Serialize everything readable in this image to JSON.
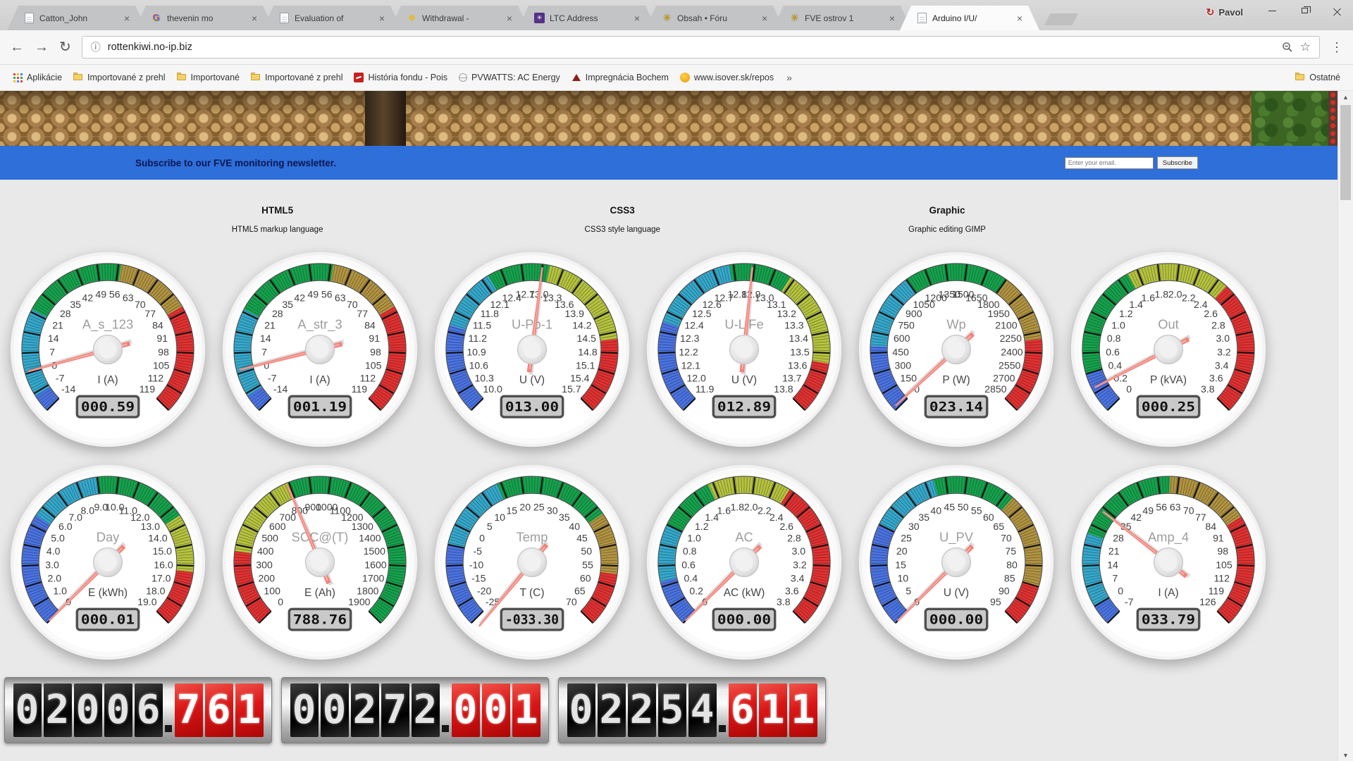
{
  "browser": {
    "tabs": [
      {
        "icon": "document",
        "label": "Catton_John",
        "active": false
      },
      {
        "icon": "google",
        "label": "thevenin mo",
        "active": false
      },
      {
        "icon": "document",
        "label": "Evaluation of",
        "active": false
      },
      {
        "icon": "binance",
        "label": "Withdrawal -",
        "active": false
      },
      {
        "icon": "litecoin",
        "label": "LTC Address",
        "active": false
      },
      {
        "icon": "sun",
        "label": "Obsah • Fóru",
        "active": false
      },
      {
        "icon": "sun",
        "label": "FVE ostrov 1",
        "active": false
      },
      {
        "icon": "document",
        "label": "Arduino I/U/",
        "active": true
      }
    ],
    "profile_name": "Pavol",
    "url": "rottenkiwi.no-ip.biz",
    "bookmarks": [
      {
        "icon": "apps",
        "label": "Aplikácie"
      },
      {
        "icon": "folder",
        "label": "Importované z prehl"
      },
      {
        "icon": "folder",
        "label": "Importované"
      },
      {
        "icon": "folder",
        "label": "Importované z prehl"
      },
      {
        "icon": "site-red",
        "label": "História fondu - Pois"
      },
      {
        "icon": "site-gray",
        "label": "PVWATTS: AC Energy"
      },
      {
        "icon": "site-dark",
        "label": "Impregnácia Bochem"
      },
      {
        "icon": "site-orange",
        "label": "www.isover.sk/repos"
      }
    ],
    "bookmarks_more": "»",
    "bookmarks_right_label": "Ostatné"
  },
  "banner": {
    "text": "Subscribe to our FVE monitoring newsletter.",
    "email_placeholder": "Enter your email.",
    "button": "Subscribe"
  },
  "sections": [
    {
      "title": "HTML5",
      "subtitle": "HTML5 markup language"
    },
    {
      "title": "CSS3",
      "subtitle": "CSS3 style language"
    },
    {
      "title": "Graphic",
      "subtitle": "Graphic editing GIMP"
    }
  ],
  "colors": {
    "blue": "#4a73e3",
    "cyan": "#34a9cd",
    "green": "#14a34c",
    "gold": "#b29440",
    "ygreen": "#b6c43e",
    "red": "#e43030",
    "needle": "#f2837b",
    "banner": "#2e6fd9"
  },
  "gauges": [
    {
      "name": "A_s_123",
      "unit": "I (A)",
      "display": "000.59",
      "value": 0.59,
      "min": -14,
      "max": 119,
      "labels": [
        "-14",
        "-7",
        "0",
        "7",
        "14",
        "21",
        "28",
        "35",
        "42",
        "49",
        "56",
        "63",
        "70",
        "77",
        "84",
        "91",
        "98",
        "105",
        "112",
        "119"
      ],
      "zones": [
        [
          -14,
          -8,
          "blue"
        ],
        [
          -8,
          22,
          "cyan"
        ],
        [
          22,
          57,
          "green"
        ],
        [
          57,
          82,
          "gold"
        ],
        [
          82,
          119,
          "red"
        ]
      ]
    },
    {
      "name": "A_str_3",
      "unit": "I (A)",
      "display": "001.19",
      "value": 1.19,
      "min": -14,
      "max": 119,
      "labels": [
        "-14",
        "-7",
        "0",
        "7",
        "14",
        "21",
        "28",
        "35",
        "42",
        "49",
        "56",
        "63",
        "70",
        "77",
        "84",
        "91",
        "98",
        "105",
        "112",
        "119"
      ],
      "zones": [
        [
          -14,
          -8,
          "blue"
        ],
        [
          -8,
          22,
          "cyan"
        ],
        [
          22,
          57,
          "green"
        ],
        [
          57,
          82,
          "gold"
        ],
        [
          82,
          119,
          "red"
        ]
      ]
    },
    {
      "name": "U-Po-1",
      "unit": "U (V)",
      "display": "013.00",
      "value": 13.0,
      "min": 10,
      "max": 15.7,
      "labels": [
        "10.0",
        "10.3",
        "10.6",
        "10.9",
        "11.2",
        "11.5",
        "11.8",
        "12.1",
        "12.4",
        "12.7",
        "13.0",
        "13.3",
        "13.6",
        "13.9",
        "14.2",
        "14.5",
        "14.8",
        "15.1",
        "15.4",
        "15.7"
      ],
      "zones": [
        [
          10,
          11.3,
          "blue"
        ],
        [
          11.3,
          12.2,
          "cyan"
        ],
        [
          12.2,
          13.1,
          "green"
        ],
        [
          13.1,
          14.6,
          "ygreen"
        ],
        [
          14.6,
          15.7,
          "red"
        ]
      ]
    },
    {
      "name": "U-L Fe",
      "unit": "U (V)",
      "display": "012.89",
      "value": 12.89,
      "min": 11.9,
      "max": 13.8,
      "labels": [
        "11.9",
        "12.0",
        "12.1",
        "12.2",
        "12.3",
        "12.4",
        "12.5",
        "12.6",
        "12.7",
        "12.8",
        "12.9",
        "13.0",
        "13.1",
        "13.2",
        "13.3",
        "13.4",
        "13.5",
        "13.6",
        "13.7",
        "13.8"
      ],
      "zones": [
        [
          11.9,
          12.35,
          "blue"
        ],
        [
          12.35,
          12.78,
          "cyan"
        ],
        [
          12.78,
          13.08,
          "green"
        ],
        [
          13.08,
          13.55,
          "ygreen"
        ],
        [
          13.55,
          13.8,
          "red"
        ]
      ]
    },
    {
      "name": "Wp",
      "unit": "P (W)",
      "display": "023.14",
      "value": 23.14,
      "min": 0,
      "max": 2850,
      "labels": [
        "0",
        "150",
        "300",
        "450",
        "600",
        "750",
        "900",
        "1050",
        "1200",
        "1350",
        "1500",
        "1650",
        "1800",
        "1950",
        "2100",
        "2250",
        "2400",
        "2550",
        "2700",
        "2850"
      ],
      "zones": [
        [
          0,
          500,
          "blue"
        ],
        [
          500,
          1050,
          "cyan"
        ],
        [
          1050,
          1800,
          "green"
        ],
        [
          1800,
          2300,
          "gold"
        ],
        [
          2300,
          2850,
          "red"
        ]
      ]
    },
    {
      "name": "Out",
      "unit": "P (kVA)",
      "display": "000.25",
      "value": 0.25,
      "min": 0,
      "max": 3.8,
      "labels": [
        "0",
        "0.2",
        "0.4",
        "0.6",
        "0.8",
        "1.0",
        "1.2",
        "1.4",
        "1.6",
        "1.8",
        "2.0",
        "2.2",
        "2.4",
        "2.6",
        "2.8",
        "3.0",
        "3.2",
        "3.4",
        "3.6",
        "3.8"
      ],
      "zones": [
        [
          0,
          0.4,
          "blue"
        ],
        [
          0.4,
          1.5,
          "green"
        ],
        [
          1.5,
          2.5,
          "ygreen"
        ],
        [
          2.5,
          3.8,
          "red"
        ]
      ]
    },
    {
      "name": "Day",
      "unit": "E (kWh)",
      "display": "000.01",
      "value": 0.01,
      "min": 0,
      "max": 19,
      "labels": [
        "0",
        "1.0",
        "2.0",
        "3.0",
        "4.0",
        "5.0",
        "6.0",
        "7.0",
        "8.0",
        "9.0",
        "10.0",
        "11.0",
        "12.0",
        "13.0",
        "14.0",
        "15.0",
        "16.0",
        "17.0",
        "18.0",
        "19.0"
      ],
      "zones": [
        [
          0,
          5.5,
          "blue"
        ],
        [
          5.5,
          9,
          "cyan"
        ],
        [
          9,
          13.5,
          "green"
        ],
        [
          13.5,
          16.3,
          "ygreen"
        ],
        [
          16.3,
          19,
          "red"
        ]
      ]
    },
    {
      "name": "SCC@(T)",
      "unit": "E (Ah)",
      "display": "788.76",
      "value": 788.76,
      "min": 0,
      "max": 1900,
      "labels": [
        "0",
        "100",
        "200",
        "300",
        "400",
        "500",
        "600",
        "700",
        "800",
        "900",
        "1000",
        "1100",
        "1200",
        "1300",
        "1400",
        "1500",
        "1600",
        "1700",
        "1800",
        "1900"
      ],
      "zones": [
        [
          0,
          370,
          "red"
        ],
        [
          370,
          800,
          "ygreen"
        ],
        [
          800,
          1900,
          "green"
        ]
      ]
    },
    {
      "name": "Temp",
      "unit": "T (C)",
      "display": "-033.30",
      "value": -33.3,
      "min": -25,
      "max": 70,
      "labels": [
        "-25",
        "-20",
        "-15",
        "-10",
        "-5",
        "0",
        "5",
        "10",
        "15",
        "20",
        "25",
        "30",
        "35",
        "40",
        "45",
        "50",
        "55",
        "60",
        "65",
        "70"
      ],
      "zones": [
        [
          -25,
          -5,
          "blue"
        ],
        [
          -5,
          14,
          "cyan"
        ],
        [
          14,
          42,
          "green"
        ],
        [
          42,
          57,
          "gold"
        ],
        [
          57,
          70,
          "red"
        ]
      ]
    },
    {
      "name": "AC",
      "unit": "AC (kW)",
      "display": "000.00",
      "value": 0,
      "min": 0,
      "max": 3.8,
      "labels": [
        "0",
        "0.2",
        "0.4",
        "0.6",
        "0.8",
        "1.0",
        "1.2",
        "1.4",
        "1.6",
        "1.8",
        "2.0",
        "2.2",
        "2.4",
        "2.6",
        "2.8",
        "3.0",
        "3.2",
        "3.4",
        "3.6",
        "3.8"
      ],
      "zones": [
        [
          0,
          0.45,
          "blue"
        ],
        [
          0.45,
          1.0,
          "cyan"
        ],
        [
          1.0,
          1.55,
          "green"
        ],
        [
          1.55,
          2.35,
          "ygreen"
        ],
        [
          2.35,
          3.8,
          "red"
        ]
      ]
    },
    {
      "name": "U_PV",
      "unit": "U (V)",
      "display": "000.00",
      "value": 0,
      "min": 0,
      "max": 95,
      "labels": [
        "0",
        "5",
        "10",
        "15",
        "20",
        "25",
        "30",
        "35",
        "40",
        "45",
        "50",
        "55",
        "60",
        "65",
        "70",
        "75",
        "80",
        "85",
        "90",
        "95"
      ],
      "zones": [
        [
          0,
          25,
          "blue"
        ],
        [
          25,
          42,
          "cyan"
        ],
        [
          42,
          62,
          "green"
        ],
        [
          62,
          85,
          "gold"
        ],
        [
          85,
          95,
          "red"
        ]
      ]
    },
    {
      "name": "Amp_4",
      "unit": "I (A)",
      "display": "033.79",
      "value": 33.79,
      "min": -7,
      "max": 126,
      "labels": [
        "-7",
        "0",
        "7",
        "14",
        "21",
        "28",
        "35",
        "42",
        "49",
        "56",
        "63",
        "70",
        "77",
        "84",
        "91",
        "98",
        "105",
        "112",
        "119",
        "126"
      ],
      "zones": [
        [
          -7,
          0,
          "blue"
        ],
        [
          0,
          25,
          "cyan"
        ],
        [
          25,
          60,
          "green"
        ],
        [
          60,
          88,
          "gold"
        ],
        [
          88,
          126,
          "red"
        ]
      ]
    }
  ],
  "counters": [
    {
      "dark": "02006",
      "red": "761"
    },
    {
      "dark": "00272",
      "red": "001"
    },
    {
      "dark": "02254",
      "red": "611"
    }
  ]
}
